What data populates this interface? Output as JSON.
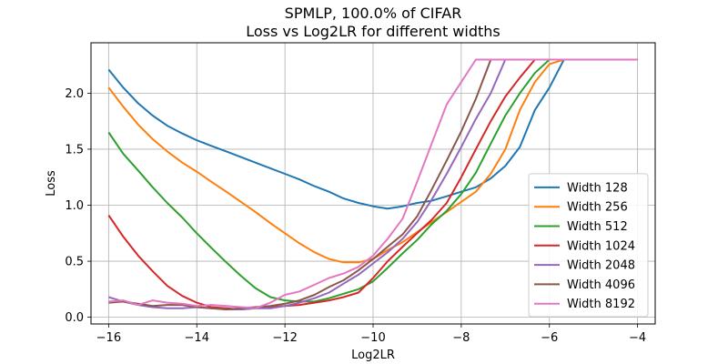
{
  "chart_data": {
    "type": "line",
    "title": "SPMLP, 100.0% of CIFAR",
    "subtitle": "Loss vs Log2LR for different widths",
    "xlabel": "Log2LR",
    "ylabel": "Loss",
    "xlim": [
      -16.4,
      -3.6
    ],
    "ylim": [
      -0.06,
      2.45
    ],
    "xticks": [
      -16,
      -14,
      -12,
      -10,
      -8,
      -6,
      -4
    ],
    "yticks": [
      0.0,
      0.5,
      1.0,
      1.5,
      2.0
    ],
    "xtick_labels": [
      "−16",
      "−14",
      "−12",
      "−10",
      "−8",
      "−6",
      "−4"
    ],
    "ytick_labels": [
      "0.0",
      "0.5",
      "1.0",
      "1.5",
      "2.0"
    ],
    "grid": true,
    "legend_position": "lower-right",
    "x": [
      -16,
      -15.67,
      -15.33,
      -15,
      -14.67,
      -14.33,
      -14,
      -13.67,
      -13.33,
      -13,
      -12.67,
      -12.33,
      -12,
      -11.67,
      -11.33,
      -11,
      -10.67,
      -10.33,
      -10,
      -9.67,
      -9.33,
      -9,
      -8.67,
      -8.33,
      -8,
      -7.67,
      -7.33,
      -7,
      -6.67,
      -6.33,
      -6,
      -5.67,
      -5.33,
      -5,
      -4.67,
      -4.33,
      -4
    ],
    "series": [
      {
        "name": "Width 128",
        "color": "#1f77b4",
        "values": [
          2.21,
          2.05,
          1.91,
          1.8,
          1.71,
          1.64,
          1.58,
          1.53,
          1.48,
          1.43,
          1.38,
          1.33,
          1.28,
          1.23,
          1.17,
          1.12,
          1.06,
          1.02,
          0.99,
          0.97,
          0.99,
          1.02,
          1.04,
          1.08,
          1.12,
          1.16,
          1.24,
          1.35,
          1.52,
          1.85,
          2.05,
          2.3,
          2.3,
          2.3,
          2.3,
          2.3,
          2.3
        ]
      },
      {
        "name": "Width 256",
        "color": "#ff7f0e",
        "values": [
          2.05,
          1.88,
          1.72,
          1.59,
          1.48,
          1.38,
          1.3,
          1.21,
          1.12,
          1.03,
          0.94,
          0.84,
          0.75,
          0.66,
          0.58,
          0.52,
          0.49,
          0.49,
          0.52,
          0.6,
          0.67,
          0.76,
          0.85,
          0.94,
          1.03,
          1.12,
          1.28,
          1.5,
          1.85,
          2.1,
          2.26,
          2.3,
          2.3,
          2.3,
          2.3,
          2.3,
          2.3
        ]
      },
      {
        "name": "Width 512",
        "color": "#2ca02c",
        "values": [
          1.65,
          1.46,
          1.31,
          1.16,
          1.02,
          0.89,
          0.75,
          0.62,
          0.49,
          0.37,
          0.26,
          0.18,
          0.15,
          0.14,
          0.14,
          0.17,
          0.21,
          0.25,
          0.32,
          0.44,
          0.57,
          0.69,
          0.83,
          0.95,
          1.1,
          1.29,
          1.55,
          1.8,
          2.0,
          2.18,
          2.3,
          2.3,
          2.3,
          2.3,
          2.3,
          2.3,
          2.3
        ]
      },
      {
        "name": "Width 1024",
        "color": "#d62728",
        "values": [
          0.91,
          0.72,
          0.55,
          0.41,
          0.28,
          0.19,
          0.13,
          0.09,
          0.08,
          0.07,
          0.08,
          0.09,
          0.1,
          0.11,
          0.13,
          0.15,
          0.18,
          0.22,
          0.35,
          0.5,
          0.63,
          0.75,
          0.87,
          1.02,
          1.25,
          1.5,
          1.75,
          1.97,
          2.14,
          2.3,
          2.3,
          2.3,
          2.3,
          2.3,
          2.3,
          2.3,
          2.3
        ]
      },
      {
        "name": "Width 2048",
        "color": "#9467bd",
        "values": [
          0.18,
          0.14,
          0.11,
          0.09,
          0.08,
          0.08,
          0.09,
          0.08,
          0.07,
          0.07,
          0.08,
          0.08,
          0.1,
          0.13,
          0.17,
          0.22,
          0.3,
          0.38,
          0.48,
          0.58,
          0.7,
          0.85,
          1.05,
          1.28,
          1.52,
          1.77,
          2.0,
          2.3,
          2.3,
          2.3,
          2.3,
          2.3,
          2.3,
          2.3,
          2.3,
          2.3,
          2.3
        ]
      },
      {
        "name": "Width 4096",
        "color": "#8c564b",
        "values": [
          0.13,
          0.14,
          0.12,
          0.1,
          0.11,
          0.11,
          0.09,
          0.08,
          0.07,
          0.08,
          0.09,
          0.1,
          0.12,
          0.15,
          0.2,
          0.27,
          0.33,
          0.42,
          0.52,
          0.63,
          0.74,
          0.9,
          1.14,
          1.4,
          1.66,
          1.95,
          2.3,
          2.3,
          2.3,
          2.3,
          2.3,
          2.3,
          2.3,
          2.3,
          2.3,
          2.3,
          2.3
        ]
      },
      {
        "name": "Width 8192",
        "color": "#e377c2",
        "values": [
          0.14,
          0.15,
          0.11,
          0.15,
          0.13,
          0.12,
          0.1,
          0.11,
          0.1,
          0.09,
          0.08,
          0.13,
          0.2,
          0.23,
          0.29,
          0.35,
          0.39,
          0.45,
          0.55,
          0.7,
          0.88,
          1.21,
          1.55,
          1.9,
          2.1,
          2.3,
          2.3,
          2.3,
          2.3,
          2.3,
          2.3,
          2.3,
          2.3,
          2.3,
          2.3,
          2.3,
          2.3
        ]
      }
    ]
  }
}
